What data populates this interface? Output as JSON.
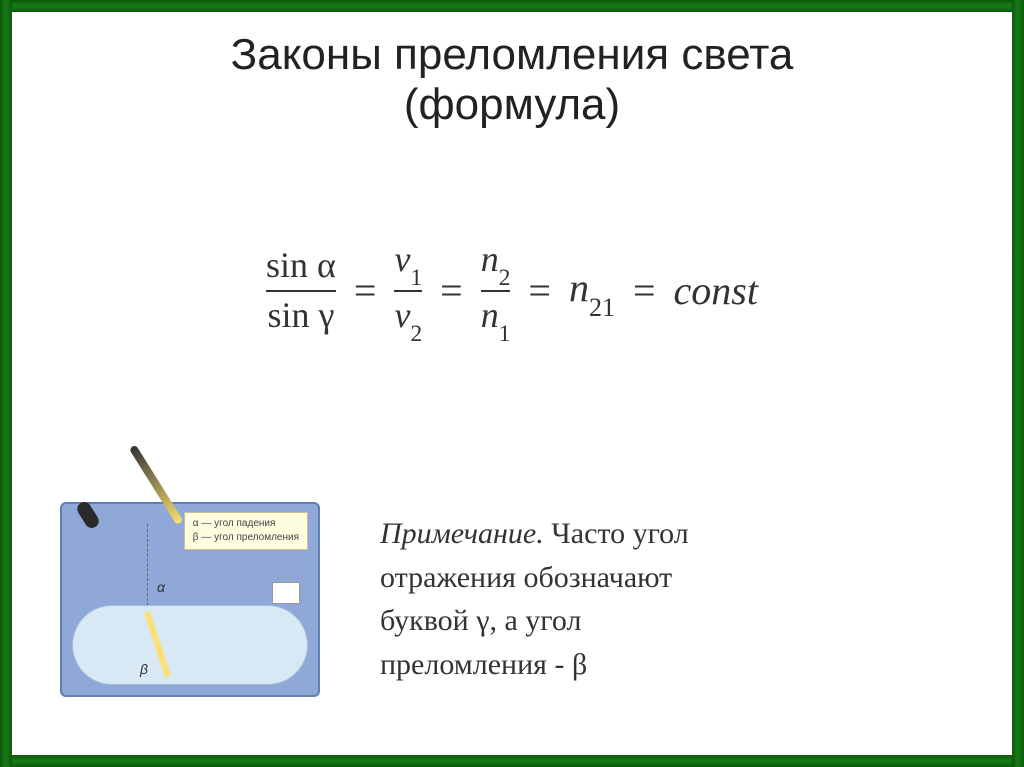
{
  "title": {
    "line1": "Законы преломления света",
    "line2": "(формула)",
    "fontsize": 44,
    "color": "#222222"
  },
  "formula": {
    "frac1_top": "sin α",
    "frac1_bot": "sin γ",
    "eq": "=",
    "frac2_top_v": "v",
    "frac2_top_sub": "1",
    "frac2_bot_v": "v",
    "frac2_bot_sub": "2",
    "frac3_top_n": "n",
    "frac3_top_sub": "2",
    "frac3_bot_n": "n",
    "frac3_bot_sub": "1",
    "n21_n": "n",
    "n21_sub": "21",
    "const_text": "const",
    "fontsize": 40,
    "frac_fontsize": 36,
    "color": "#333333"
  },
  "diagram": {
    "legend_alpha": "α — угол падения",
    "legend_beta": "β — угол преломления",
    "label_alpha": "α",
    "label_beta": "β",
    "bg_color": "#8fa8d8",
    "glass_color": "#d8e8f4",
    "ray_color": "#f9e070"
  },
  "note": {
    "lead": "Примечание.",
    "body1": "Часто угол",
    "body2": "отражения обозначают",
    "body3": "буквой γ, а угол",
    "body4": "преломления - β",
    "fontsize": 30,
    "color": "#333333"
  },
  "frame": {
    "border_color": "#0a5a0a",
    "background": "#ffffff"
  }
}
